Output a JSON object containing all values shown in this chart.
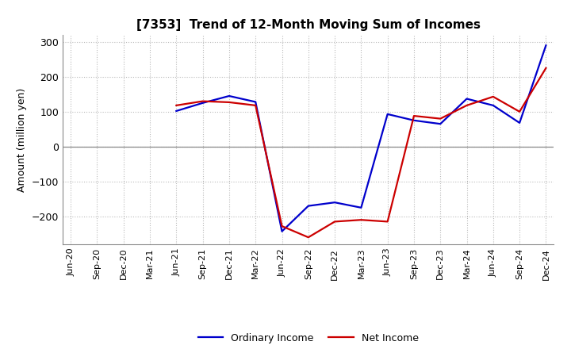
{
  "title": "[7353]  Trend of 12-Month Moving Sum of Incomes",
  "ylabel": "Amount (million yen)",
  "background_color": "#ffffff",
  "grid_color": "#bbbbbb",
  "ordinary_income_color": "#0000cc",
  "net_income_color": "#cc0000",
  "line_width": 1.6,
  "ylim": [
    -280,
    320
  ],
  "yticks": [
    -200,
    -100,
    0,
    100,
    200,
    300
  ],
  "x_labels": [
    "Jun-20",
    "Sep-20",
    "Dec-20",
    "Mar-21",
    "Jun-21",
    "Sep-21",
    "Dec-21",
    "Mar-22",
    "Jun-22",
    "Sep-22",
    "Dec-22",
    "Mar-23",
    "Jun-23",
    "Sep-23",
    "Dec-23",
    "Mar-24",
    "Jun-24",
    "Sep-24",
    "Dec-24"
  ],
  "oi_x": [
    4,
    5,
    6,
    7,
    8,
    9,
    10,
    11,
    12,
    13,
    14,
    15,
    16,
    17,
    18
  ],
  "oi_y": [
    102,
    125,
    145,
    128,
    -243,
    -170,
    -160,
    -175,
    93,
    75,
    65,
    137,
    118,
    68,
    290
  ],
  "ni_x": [
    4,
    5,
    6,
    7,
    8,
    9,
    10,
    11,
    12,
    13,
    14,
    15,
    16,
    17,
    18
  ],
  "ni_y": [
    118,
    130,
    127,
    118,
    -228,
    -260,
    -215,
    -210,
    -215,
    88,
    80,
    118,
    143,
    100,
    225
  ],
  "legend_labels": [
    "Ordinary Income",
    "Net Income"
  ]
}
